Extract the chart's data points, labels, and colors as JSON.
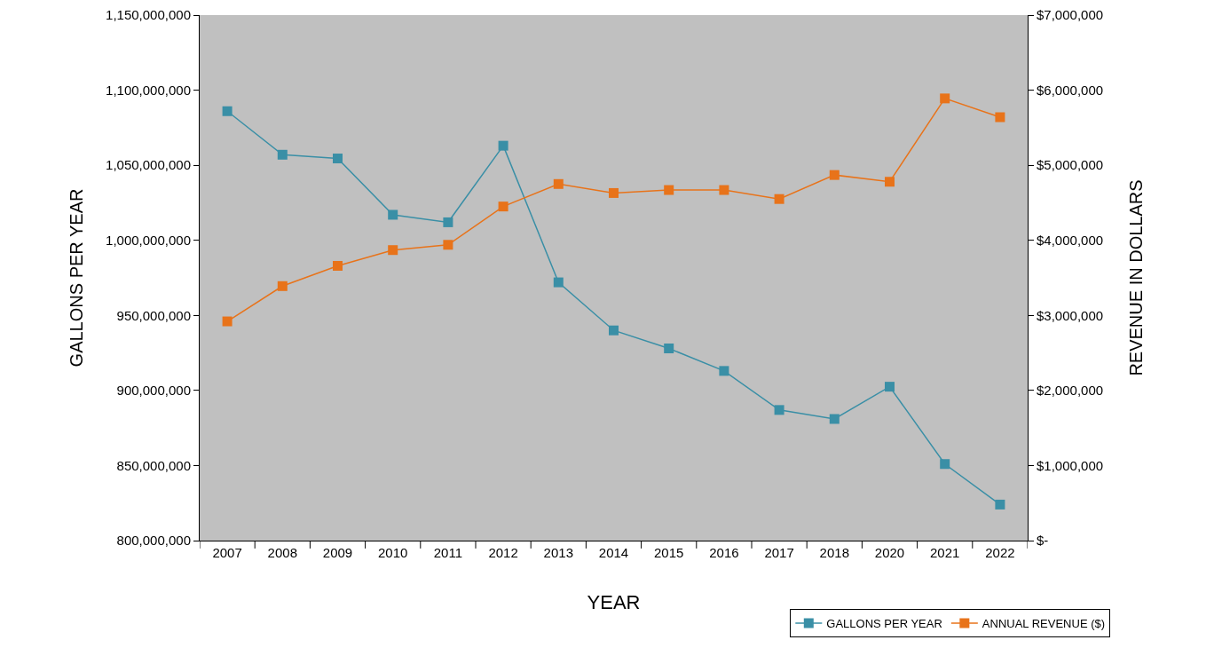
{
  "chart_data": {
    "type": "line",
    "xlabel": "YEAR",
    "ylabel": "GALLONS PER YEAR",
    "y2label": "REVENUE IN DOLLARS",
    "categories": [
      "2007",
      "2008",
      "2009",
      "2010",
      "2011",
      "2012",
      "2013",
      "2014",
      "2015",
      "2016",
      "2017",
      "2018",
      "2020",
      "2021",
      "2022"
    ],
    "series": [
      {
        "name": "GALLONS PER YEAR",
        "color": "#3a8fa6",
        "values": [
          1086000000,
          1057000000,
          1054500000,
          1017000000,
          1012000000,
          1063000000,
          972000000,
          940000000,
          928000000,
          913000000,
          887000000,
          881000000,
          902500000,
          851000000,
          824000000
        ]
      },
      {
        "name": "ANNUAL REVENUE ($)",
        "color": "#e8731a",
        "axis": "y2",
        "values": [
          2920000,
          3390000,
          3660000,
          3870000,
          3940000,
          4450000,
          4750000,
          4630000,
          4670000,
          4670000,
          4550000,
          4870000,
          4780000,
          5890000,
          5640000
        ]
      }
    ],
    "ylim": [
      800000000,
      1150000000
    ],
    "yticks": [
      {
        "value": 800000000,
        "label": "800,000,000"
      },
      {
        "value": 850000000,
        "label": "850,000,000"
      },
      {
        "value": 900000000,
        "label": "900,000,000"
      },
      {
        "value": 950000000,
        "label": "950,000,000"
      },
      {
        "value": 1000000000,
        "label": "1,000,000,000"
      },
      {
        "value": 1050000000,
        "label": "1,050,000,000"
      },
      {
        "value": 1100000000,
        "label": "1,100,000,000"
      },
      {
        "value": 1150000000,
        "label": "1,150,000,000"
      }
    ],
    "y2lim": [
      0,
      7000000
    ],
    "y2ticks": [
      {
        "value": 0,
        "label": "$-"
      },
      {
        "value": 1000000,
        "label": "$1,000,000"
      },
      {
        "value": 2000000,
        "label": "$2,000,000"
      },
      {
        "value": 3000000,
        "label": "$3,000,000"
      },
      {
        "value": 4000000,
        "label": "$4,000,000"
      },
      {
        "value": 5000000,
        "label": "$5,000,000"
      },
      {
        "value": 6000000,
        "label": "$6,000,000"
      },
      {
        "value": 7000000,
        "label": "$7,000,000"
      }
    ],
    "grid": false,
    "legend": "bottom right",
    "marker": "square",
    "line_style": "solid"
  }
}
